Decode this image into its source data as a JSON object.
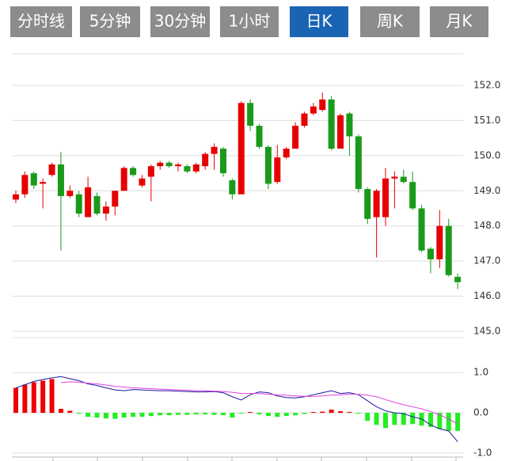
{
  "tabs": [
    "分时线",
    "5分钟",
    "30分钟",
    "1小时",
    "日K",
    "周K",
    "月K"
  ],
  "active_tab": 4,
  "tab_color": "#8c8c8c",
  "active_tab_color": "#1a64b4",
  "chart_data": [
    {
      "type": "candlestick",
      "up_color": "#e60000",
      "down_color": "#1a9a1a",
      "ylim": [
        145,
        152.9
      ],
      "yticks": [
        {
          "value": 145,
          "label": "145.0"
        },
        {
          "value": 146,
          "label": "146.0"
        },
        {
          "value": 147,
          "label": "147.0"
        },
        {
          "value": 148,
          "label": "148.0"
        },
        {
          "value": 149,
          "label": "149.0"
        },
        {
          "value": 150,
          "label": "150.0"
        },
        {
          "value": 151,
          "label": "151.0"
        },
        {
          "value": 152,
          "label": "152.0"
        }
      ],
      "grid": true,
      "open": [
        148.75,
        148.9,
        149.5,
        149.2,
        149.45,
        149.75,
        148.85,
        148.9,
        148.25,
        148.85,
        148.35,
        148.55,
        149.0,
        149.65,
        149.15,
        149.4,
        149.7,
        149.8,
        149.7,
        149.7,
        149.55,
        149.7,
        150.05,
        150.2,
        149.3,
        148.9,
        151.5,
        150.85,
        150.25,
        149.25,
        149.95,
        150.2,
        150.85,
        151.2,
        151.3,
        151.6,
        150.2,
        151.2,
        150.55,
        149.05,
        148.25,
        148.25,
        149.35,
        149.4,
        149.25,
        148.5,
        147.35,
        147.05,
        148.0,
        146.55
      ],
      "high": [
        149.0,
        149.55,
        149.55,
        149.35,
        149.8,
        150.1,
        149.15,
        149.0,
        149.4,
        148.95,
        148.7,
        149.0,
        149.7,
        149.7,
        149.45,
        149.75,
        149.85,
        149.85,
        149.8,
        149.75,
        149.8,
        150.1,
        150.35,
        150.25,
        149.35,
        151.55,
        151.6,
        150.9,
        150.3,
        150.3,
        150.25,
        150.95,
        151.25,
        151.5,
        151.8,
        151.7,
        151.2,
        151.25,
        150.6,
        149.1,
        149.05,
        149.65,
        149.55,
        149.6,
        149.55,
        148.6,
        147.4,
        148.45,
        148.2,
        146.65
      ],
      "low": [
        148.65,
        148.8,
        149.05,
        148.5,
        149.4,
        147.3,
        148.8,
        148.25,
        148.25,
        148.3,
        148.15,
        148.3,
        149.0,
        149.4,
        149.1,
        148.7,
        149.6,
        149.65,
        149.55,
        149.5,
        149.5,
        149.6,
        149.6,
        149.4,
        148.75,
        148.9,
        150.7,
        150.2,
        149.05,
        149.2,
        149.9,
        150.2,
        150.8,
        151.15,
        151.25,
        150.15,
        150.2,
        150.0,
        148.95,
        148.05,
        147.1,
        148.0,
        148.5,
        149.2,
        148.45,
        147.25,
        146.65,
        146.8,
        146.55,
        146.2
      ],
      "close": [
        148.9,
        149.45,
        149.15,
        149.25,
        149.75,
        148.85,
        149.0,
        148.35,
        149.1,
        148.35,
        148.55,
        149.0,
        149.65,
        149.45,
        149.35,
        149.7,
        149.8,
        149.7,
        149.75,
        149.55,
        149.75,
        150.05,
        150.25,
        149.5,
        148.9,
        151.5,
        150.85,
        150.25,
        149.2,
        149.95,
        150.2,
        150.85,
        151.2,
        151.4,
        151.6,
        150.2,
        151.15,
        150.55,
        149.05,
        148.2,
        149.0,
        149.35,
        149.4,
        149.25,
        148.5,
        147.3,
        147.05,
        148.0,
        146.6,
        146.4
      ]
    },
    {
      "type": "macd",
      "ylim": [
        -1.1,
        1.85
      ],
      "yticks": [
        {
          "value": -1,
          "label": "-1.0"
        },
        {
          "value": 0,
          "label": "0.0"
        },
        {
          "value": 1,
          "label": "1.0"
        }
      ],
      "grid": true,
      "up_color": "#ee0000",
      "down_color": "#22ee22",
      "histogram": [
        0.62,
        0.7,
        0.76,
        0.8,
        0.84,
        0.1,
        0.05,
        -0.02,
        -0.1,
        -0.12,
        -0.14,
        -0.15,
        -0.12,
        -0.1,
        -0.1,
        -0.08,
        -0.06,
        -0.06,
        -0.05,
        -0.05,
        -0.04,
        -0.04,
        -0.05,
        -0.06,
        -0.12,
        -0.02,
        0.02,
        -0.04,
        -0.08,
        -0.1,
        -0.08,
        -0.06,
        -0.03,
        0.02,
        0.03,
        0.08,
        0.04,
        0.02,
        -0.02,
        -0.2,
        -0.3,
        -0.38,
        -0.3,
        -0.3,
        -0.28,
        -0.32,
        -0.35,
        -0.4,
        -0.45,
        -0.45
      ],
      "series": [
        {
          "color": "#1a1aa0",
          "values": [
            0.62,
            0.7,
            0.78,
            0.83,
            0.87,
            0.9,
            0.85,
            0.8,
            0.72,
            0.68,
            0.62,
            0.57,
            0.55,
            0.58,
            0.57,
            0.56,
            0.55,
            0.55,
            0.54,
            0.53,
            0.52,
            0.52,
            0.53,
            0.5,
            0.4,
            0.32,
            0.45,
            0.52,
            0.5,
            0.42,
            0.38,
            0.37,
            0.4,
            0.45,
            0.5,
            0.55,
            0.48,
            0.5,
            0.45,
            0.3,
            0.15,
            0.05,
            0.0,
            -0.02,
            -0.1,
            -0.15,
            -0.3,
            -0.4,
            -0.45,
            -0.72
          ]
        },
        {
          "color": "#e040e0",
          "values": [
            null,
            null,
            null,
            null,
            null,
            0.75,
            0.77,
            0.76,
            0.74,
            0.72,
            0.69,
            0.66,
            0.64,
            0.62,
            0.61,
            0.6,
            0.59,
            0.58,
            0.57,
            0.56,
            0.55,
            0.55,
            0.54,
            0.53,
            0.51,
            0.48,
            0.48,
            0.48,
            0.46,
            0.45,
            0.44,
            0.42,
            0.41,
            0.41,
            0.42,
            0.44,
            0.45,
            0.46,
            0.46,
            0.44,
            0.4,
            0.33,
            0.26,
            0.2,
            0.15,
            0.1,
            0.03,
            -0.05,
            -0.15,
            -0.28
          ]
        }
      ]
    }
  ]
}
